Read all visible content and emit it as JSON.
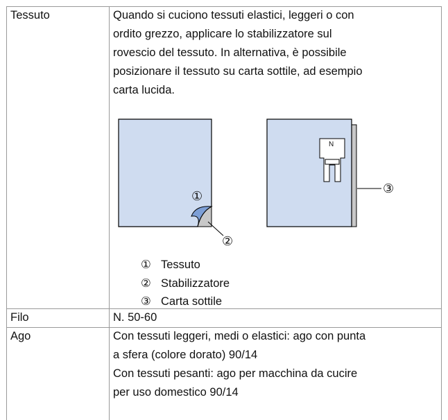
{
  "table": {
    "rows": [
      {
        "label": "Tessuto",
        "lines": [
          "Quando si cuciono tessuti elastici, leggeri o con",
          "ordito grezzo, applicare lo stabilizzatore sul",
          "rovescio del tessuto. In alternativa, è possibile",
          "posizionare il tessuto su carta sottile, ad esempio",
          "carta lucida."
        ],
        "figure": {
          "callouts": [
            "①",
            "②",
            "③"
          ],
          "foot_letter": "N"
        },
        "legend": [
          {
            "num": "①",
            "text": "Tessuto"
          },
          {
            "num": "②",
            "text": "Stabilizzatore"
          },
          {
            "num": "③",
            "text": "Carta sottile"
          }
        ]
      },
      {
        "label": "Filo",
        "lines": [
          "N. 50-60"
        ]
      },
      {
        "label": "Ago",
        "lines": [
          "Con tessuti leggeri, medi o elastici: ago con punta",
          "a sfera (colore dorato) 90/14",
          "Con tessuti pesanti: ago per macchina da cucire",
          "per uso domestico 90/14"
        ]
      }
    ]
  }
}
